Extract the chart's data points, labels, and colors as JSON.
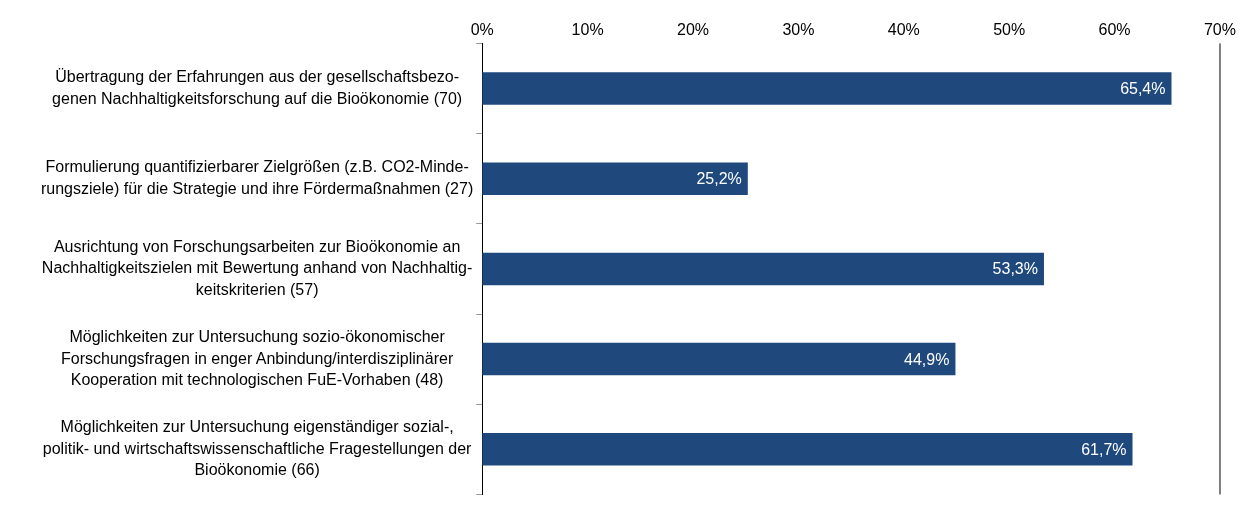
{
  "chart_data": {
    "type": "bar",
    "orientation": "horizontal",
    "categories": [
      "Übertragung der Erfahrungen aus der gesellschaftsbezo-\ngenen Nachhaltigkeitsforschung auf die Bioökonomie (70)",
      "Formulierung quantifizierbarer Zielgrößen (z.B. CO2-Minde-\nrungsziele) für die Strategie und ihre Fördermaßnahmen (27)",
      "Ausrichtung von Forschungsarbeiten zur Bioökonomie an\nNachhaltigkeitszielen mit Bewertung anhand von Nachhaltig-\nkeitskriterien (57)",
      "Möglichkeiten zur Untersuchung sozio-ökonomischer\nForschungsfragen in enger Anbindung/interdisziplinärer\nKooperation mit technologischen FuE-Vorhaben (48)",
      "Möglichkeiten zur Untersuchung eigenständiger sozial-,\npolitik- und wirtschaftswissenschaftliche Fragestellungen der\nBioökonomie (66)"
    ],
    "values": [
      65.4,
      25.2,
      53.3,
      44.9,
      61.7
    ],
    "value_labels": [
      "65,4%",
      "25,2%",
      "53,3%",
      "44,9%",
      "61,7%"
    ],
    "color": "#1f497d",
    "xlim": [
      0,
      70
    ],
    "xticks": [
      {
        "value": 0,
        "label": "0%"
      },
      {
        "value": 10,
        "label": "10%"
      },
      {
        "value": 20,
        "label": "20%"
      },
      {
        "value": 30,
        "label": "30%"
      },
      {
        "value": 40,
        "label": "40%"
      },
      {
        "value": 50,
        "label": "50%"
      },
      {
        "value": 60,
        "label": "60%"
      },
      {
        "value": 70,
        "label": "70%"
      }
    ],
    "grid": false,
    "legend": false
  }
}
